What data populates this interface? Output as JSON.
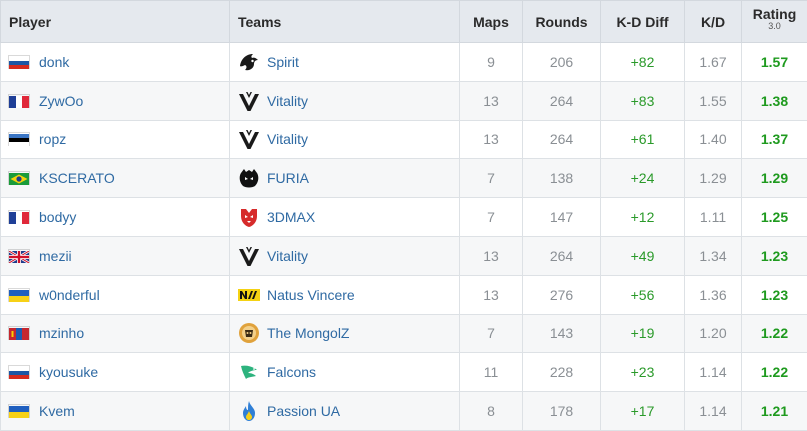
{
  "columns": {
    "player": "Player",
    "teams": "Teams",
    "maps": "Maps",
    "rounds": "Rounds",
    "kd_diff": "K-D Diff",
    "kd": "K/D",
    "rating": "Rating",
    "rating_version": "3.0"
  },
  "rows": [
    {
      "player": "donk",
      "country_flag": "russia-flag",
      "team": "Spirit",
      "team_logo": "spirit-logo-icon",
      "maps": "9",
      "rounds": "206",
      "kd_diff": "+82",
      "kd": "1.67",
      "rating": "1.57"
    },
    {
      "player": "ZywOo",
      "country_flag": "france-flag",
      "team": "Vitality",
      "team_logo": "vitality-logo-icon",
      "maps": "13",
      "rounds": "264",
      "kd_diff": "+83",
      "kd": "1.55",
      "rating": "1.38"
    },
    {
      "player": "ropz",
      "country_flag": "estonia-flag",
      "team": "Vitality",
      "team_logo": "vitality-logo-icon",
      "maps": "13",
      "rounds": "264",
      "kd_diff": "+61",
      "kd": "1.40",
      "rating": "1.37"
    },
    {
      "player": "KSCERATO",
      "country_flag": "brazil-flag",
      "team": "FURIA",
      "team_logo": "furia-logo-icon",
      "maps": "7",
      "rounds": "138",
      "kd_diff": "+24",
      "kd": "1.29",
      "rating": "1.29"
    },
    {
      "player": "bodyy",
      "country_flag": "france-flag",
      "team": "3DMAX",
      "team_logo": "3dmax-logo-icon",
      "maps": "7",
      "rounds": "147",
      "kd_diff": "+12",
      "kd": "1.11",
      "rating": "1.25"
    },
    {
      "player": "mezii",
      "country_flag": "uk-flag",
      "team": "Vitality",
      "team_logo": "vitality-logo-icon",
      "maps": "13",
      "rounds": "264",
      "kd_diff": "+49",
      "kd": "1.34",
      "rating": "1.23"
    },
    {
      "player": "w0nderful",
      "country_flag": "ukraine-flag",
      "team": "Natus Vincere",
      "team_logo": "navi-logo-icon",
      "maps": "13",
      "rounds": "276",
      "kd_diff": "+56",
      "kd": "1.36",
      "rating": "1.23"
    },
    {
      "player": "mzinho",
      "country_flag": "mongolia-flag",
      "team": "The MongolZ",
      "team_logo": "mongolz-logo-icon",
      "maps": "7",
      "rounds": "143",
      "kd_diff": "+19",
      "kd": "1.20",
      "rating": "1.22"
    },
    {
      "player": "kyousuke",
      "country_flag": "russia-flag",
      "team": "Falcons",
      "team_logo": "falcons-logo-icon",
      "maps": "11",
      "rounds": "228",
      "kd_diff": "+23",
      "kd": "1.14",
      "rating": "1.22"
    },
    {
      "player": "Kvem",
      "country_flag": "ukraine-flag",
      "team": "Passion UA",
      "team_logo": "passion-ua-logo-icon",
      "maps": "8",
      "rounds": "178",
      "kd_diff": "+17",
      "kd": "1.14",
      "rating": "1.21"
    }
  ],
  "colors": {
    "header_bg": "#e5e9ee",
    "link": "#2f6aa3",
    "positive": "#2a9a2a",
    "rating": "#1e9a1e",
    "muted": "#8a8f94"
  }
}
